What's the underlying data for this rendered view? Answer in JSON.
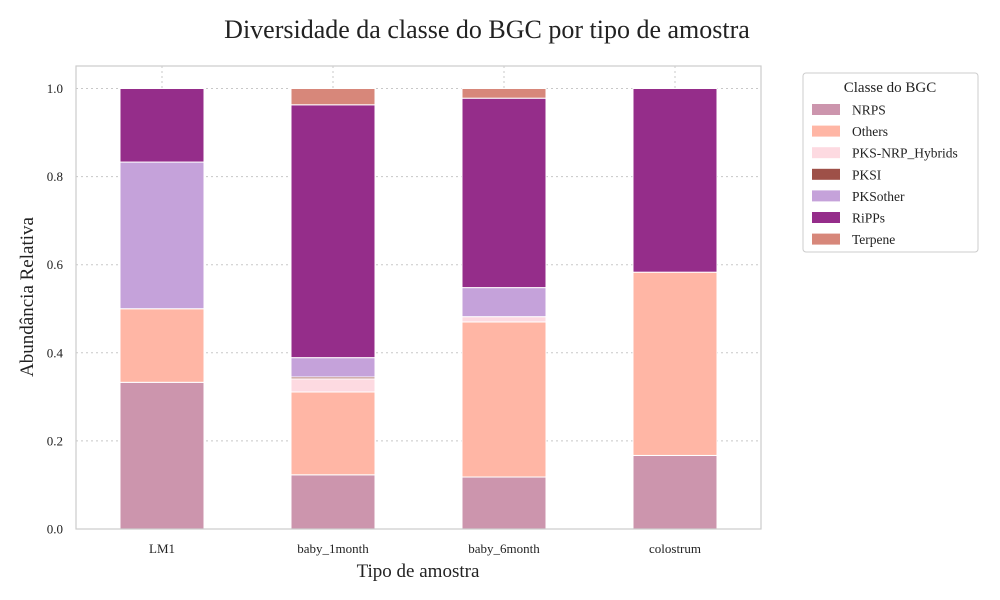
{
  "chart_data": {
    "type": "bar",
    "stacked": true,
    "title": "Diversidade da classe do BGC por tipo de amostra",
    "xlabel": "Tipo de amostra",
    "ylabel": "Abundância Relativa",
    "categories": [
      "LM1",
      "baby_1month",
      "baby_6month",
      "colostrum"
    ],
    "ylim": [
      0,
      1.05
    ],
    "yticks": [
      "0.0",
      "0.2",
      "0.4",
      "0.6",
      "0.8",
      "1.0"
    ],
    "grid": true,
    "legend": {
      "title": "Classe do BGC",
      "placement": "outside-right"
    },
    "series": [
      {
        "name": "NRPS",
        "color": "#cc95ad",
        "values": [
          0.333,
          0.123,
          0.118,
          0.167
        ]
      },
      {
        "name": "Others",
        "color": "#ffb6a5",
        "values": [
          0.167,
          0.188,
          0.352,
          0.416
        ]
      },
      {
        "name": "PKS-NRP_Hybrids",
        "color": "#fddae1",
        "values": [
          0,
          0.03,
          0.012,
          0
        ]
      },
      {
        "name": "PKSI",
        "color": "#9e5048",
        "values": [
          0,
          0.004,
          0,
          0
        ]
      },
      {
        "name": "PKSother",
        "color": "#c5a2da",
        "values": [
          0.333,
          0.044,
          0.066,
          0
        ]
      },
      {
        "name": "RiPPs",
        "color": "#952d8a",
        "values": [
          0.167,
          0.574,
          0.43,
          0.417
        ]
      },
      {
        "name": "Terpene",
        "color": "#d7877a",
        "values": [
          0,
          0.037,
          0.022,
          0
        ]
      }
    ]
  }
}
